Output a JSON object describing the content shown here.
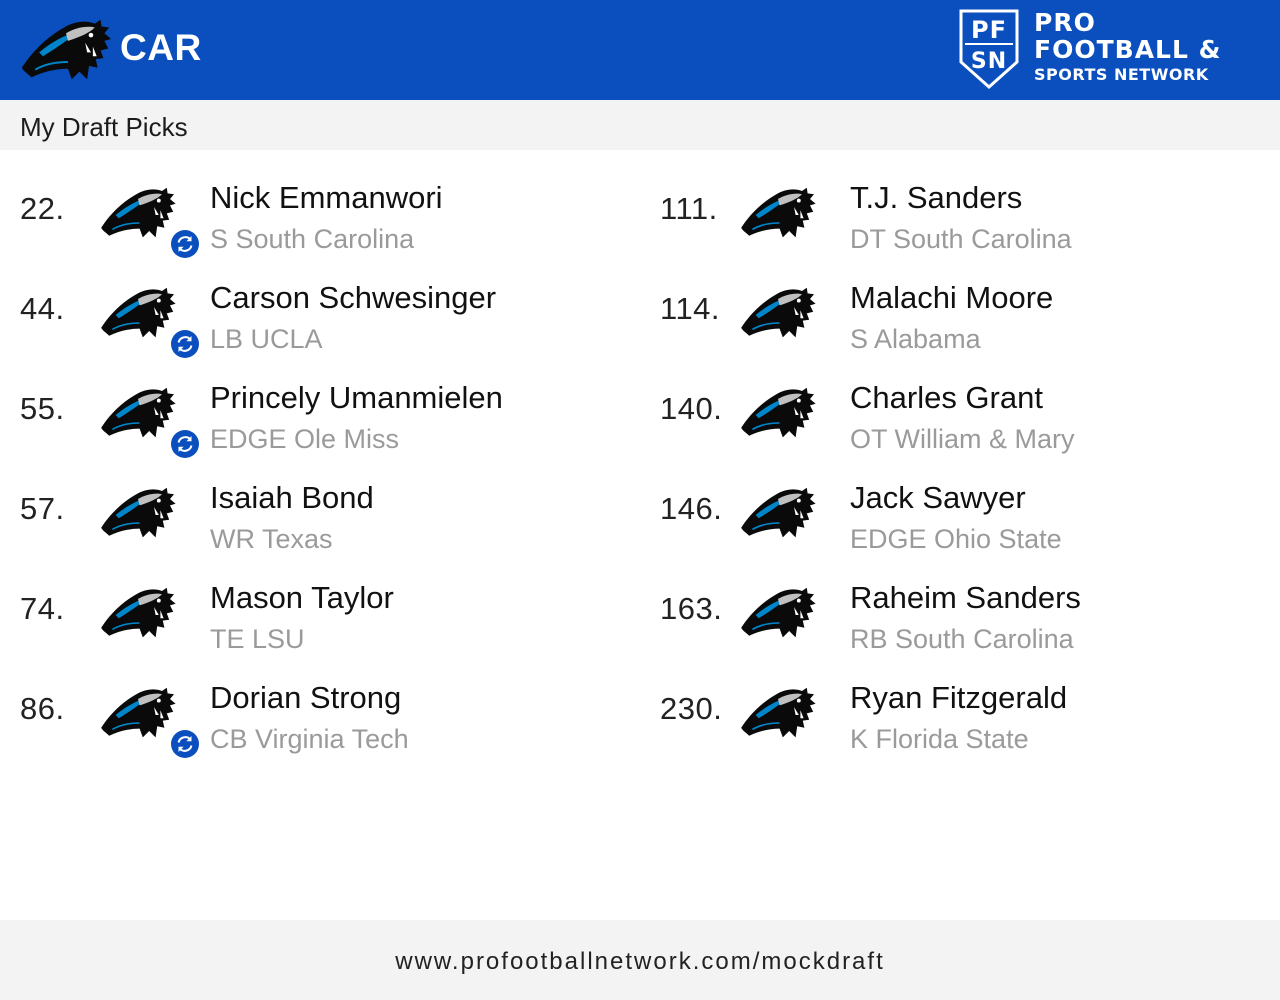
{
  "header": {
    "team_abbr": "CAR",
    "team_logo_icon": "panthers-logo-icon",
    "brand": {
      "badge_letters": "PFSN",
      "line1": "PRO",
      "line2": "FOOTBALL &",
      "line3": "SPORTS NETWORK"
    }
  },
  "colors": {
    "header_bg": "#0a4fbd",
    "panther_blue": "#0085ca",
    "secondary_text": "#9a9a9a",
    "trade_icon_bg": "#0a4fbd"
  },
  "subheader": {
    "title": "My Draft Picks"
  },
  "picks": [
    {
      "number": "22.",
      "name": "Nick Emmanwori",
      "info": "S South Carolina",
      "traded": true
    },
    {
      "number": "44.",
      "name": "Carson Schwesinger",
      "info": "LB UCLA",
      "traded": true
    },
    {
      "number": "55.",
      "name": "Princely Umanmielen",
      "info": "EDGE Ole Miss",
      "traded": true
    },
    {
      "number": "57.",
      "name": "Isaiah Bond",
      "info": "WR Texas",
      "traded": false
    },
    {
      "number": "74.",
      "name": "Mason Taylor",
      "info": "TE LSU",
      "traded": false
    },
    {
      "number": "86.",
      "name": "Dorian Strong",
      "info": "CB Virginia Tech",
      "traded": true
    },
    {
      "number": "111.",
      "name": "T.J. Sanders",
      "info": "DT South Carolina",
      "traded": false
    },
    {
      "number": "114.",
      "name": "Malachi Moore",
      "info": "S Alabama",
      "traded": false
    },
    {
      "number": "140.",
      "name": "Charles Grant",
      "info": "OT William & Mary",
      "traded": false
    },
    {
      "number": "146.",
      "name": "Jack Sawyer",
      "info": "EDGE Ohio State",
      "traded": false
    },
    {
      "number": "163.",
      "name": "Raheim Sanders",
      "info": "RB South Carolina",
      "traded": false
    },
    {
      "number": "230.",
      "name": "Ryan Fitzgerald",
      "info": "K Florida State",
      "traded": false
    }
  ],
  "footer": {
    "url": "www.profootballnetwork.com/mockdraft"
  }
}
